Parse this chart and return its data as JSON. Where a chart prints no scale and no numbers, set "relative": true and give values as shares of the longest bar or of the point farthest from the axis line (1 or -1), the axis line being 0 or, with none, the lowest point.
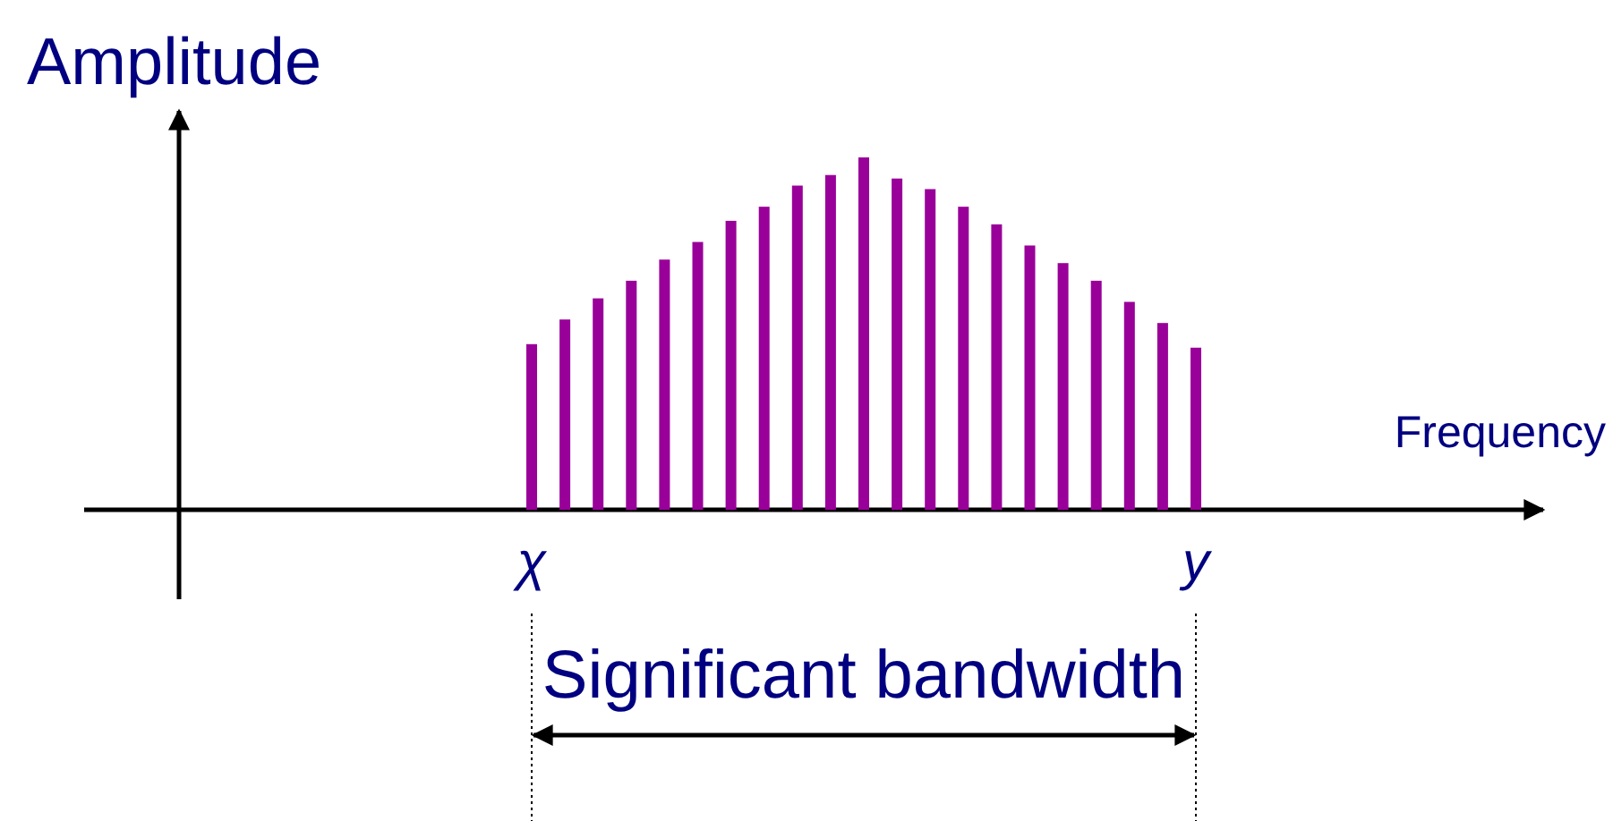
{
  "chart_data": {
    "type": "bar",
    "relative": true,
    "ylabel": "Amplitude",
    "xlabel": "Frequency",
    "color": "#990099",
    "categories": [
      "χ",
      null,
      null,
      null,
      null,
      null,
      null,
      null,
      null,
      null,
      null,
      null,
      null,
      null,
      null,
      null,
      null,
      null,
      null,
      null,
      "y"
    ],
    "values": [
      0.47,
      0.54,
      0.6,
      0.65,
      0.71,
      0.76,
      0.82,
      0.86,
      0.92,
      0.95,
      1,
      0.94,
      0.91,
      0.86,
      0.81,
      0.75,
      0.7,
      0.65,
      0.59,
      0.53,
      0.46
    ],
    "annotations": [
      "Significant bandwidth"
    ]
  }
}
